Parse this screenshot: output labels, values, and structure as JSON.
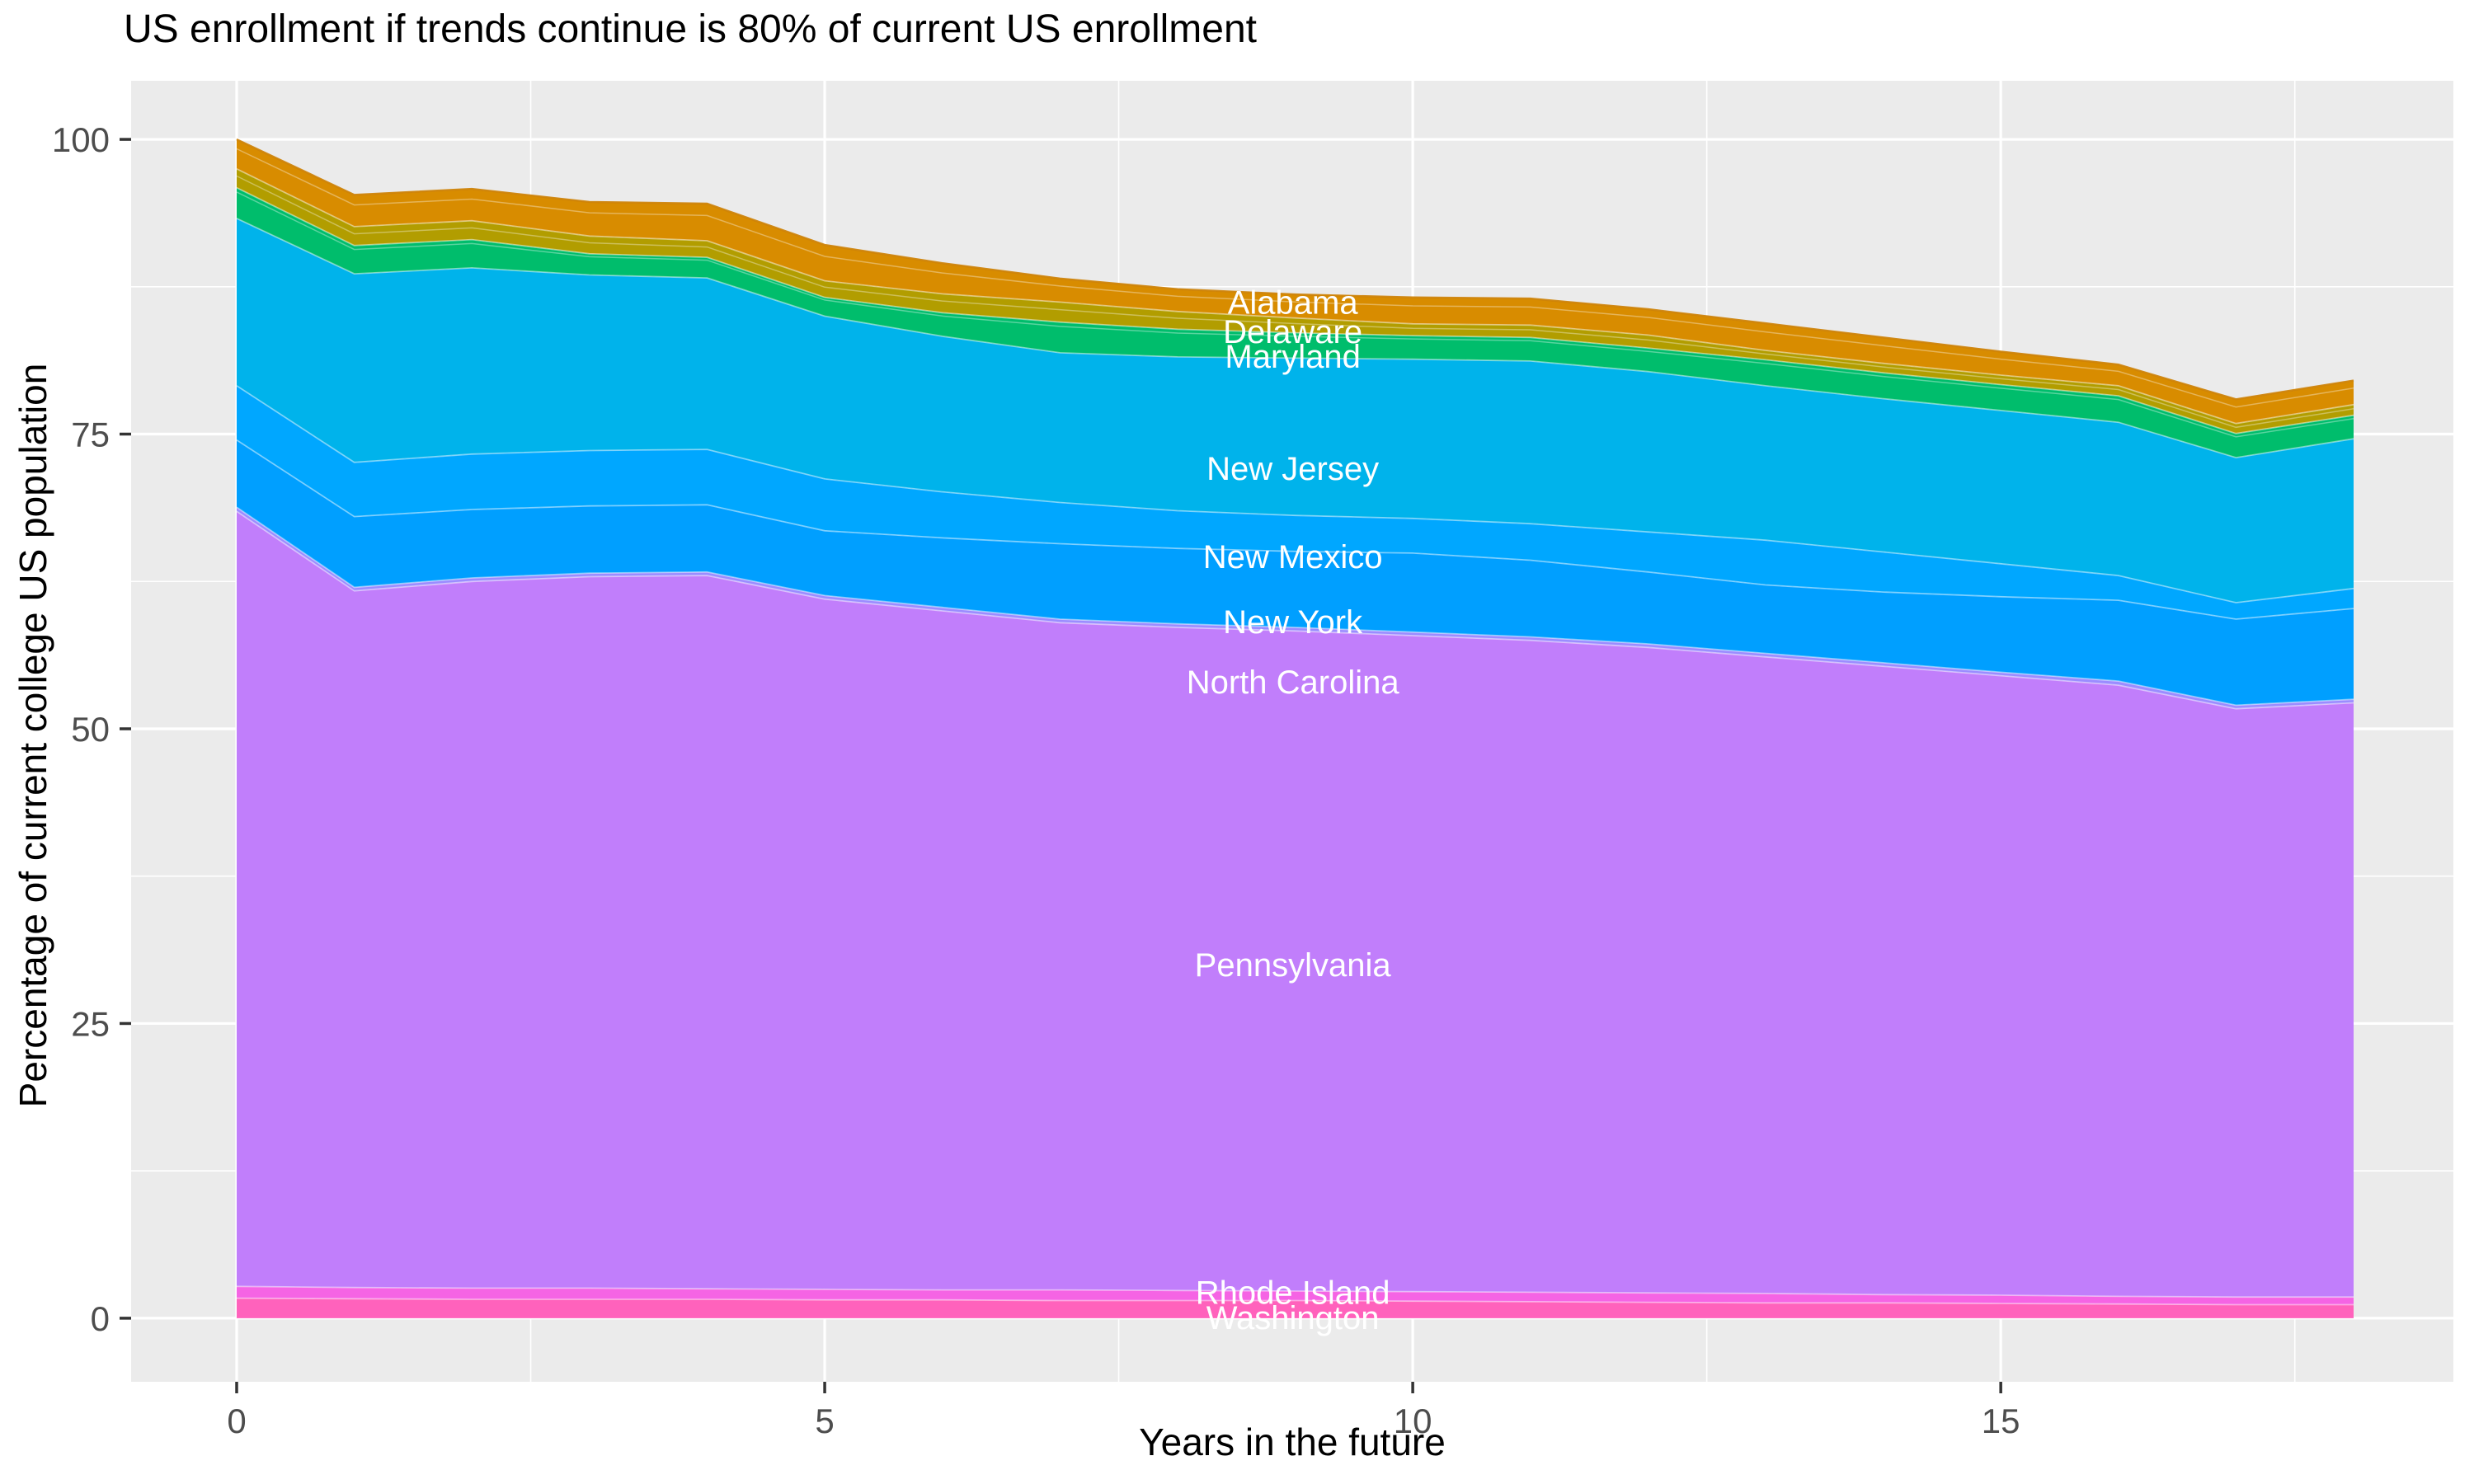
{
  "title": "US enrollment if trends continue is 80% of current US enrollment",
  "axes": {
    "x": {
      "title": "Years in the future",
      "ticks": [
        0,
        5,
        10,
        15
      ],
      "minor": [
        2.5,
        7.5,
        12.5,
        17.5
      ],
      "range": [
        0,
        18
      ]
    },
    "y": {
      "title": "Percentage of current college US population",
      "ticks": [
        0,
        25,
        50,
        75,
        100
      ],
      "minor": [
        12.5,
        37.5,
        62.5,
        87.5
      ],
      "range": [
        0,
        100
      ]
    }
  },
  "panel": {
    "background": "#EBEBEB",
    "gridline_color": "#FFFFFF",
    "tick_color": "#333333",
    "axis_text_color": "#4D4D4D"
  },
  "chart_data": {
    "type": "area",
    "stacked": true,
    "title": "US enrollment if trends continue is 80% of current US enrollment",
    "xlabel": "Years in the future",
    "ylabel": "Percentage of current college US population",
    "xlim": [
      0,
      18
    ],
    "ylim": [
      0,
      100
    ],
    "grid": true,
    "legend_position": "none",
    "x": [
      0,
      1,
      2,
      3,
      4,
      5,
      6,
      7,
      8,
      9,
      10,
      11,
      12,
      13,
      14,
      15,
      16,
      17,
      18
    ],
    "note": "series listed bottom-to-top; 'tops' are cumulative stacked percentages read from the plot",
    "series": [
      {
        "name": "Washington",
        "color": "#FF62BC",
        "tops": [
          1.7,
          1.65,
          1.6,
          1.6,
          1.6,
          1.55,
          1.55,
          1.5,
          1.5,
          1.5,
          1.45,
          1.4,
          1.35,
          1.3,
          1.3,
          1.25,
          1.2,
          1.15,
          1.15
        ]
      },
      {
        "name": "Rhode Island",
        "color": "#F564E4",
        "tops": [
          2.7,
          2.6,
          2.55,
          2.55,
          2.5,
          2.45,
          2.4,
          2.4,
          2.35,
          2.3,
          2.25,
          2.2,
          2.15,
          2.1,
          2.0,
          1.95,
          1.85,
          1.8,
          1.8
        ]
      },
      {
        "name": "Pennsylvania",
        "color": "#C17EFB",
        "tops": [
          68.45,
          61.7,
          62.5,
          62.9,
          63.0,
          61.0,
          60.0,
          59.0,
          58.6,
          58.3,
          57.9,
          57.5,
          56.9,
          56.1,
          55.3,
          54.5,
          53.7,
          51.7,
          52.2
        ]
      },
      {
        "name": "North Carolina",
        "color": "#9B8CFF",
        "tops": [
          68.8,
          62.0,
          62.8,
          63.2,
          63.3,
          61.3,
          60.3,
          59.3,
          58.9,
          58.6,
          58.2,
          57.8,
          57.2,
          56.4,
          55.6,
          54.8,
          54.05,
          52.0,
          52.5
        ]
      },
      {
        "name": "New York",
        "color": "#009FFF",
        "tops": [
          74.5,
          68.0,
          68.6,
          68.9,
          69.0,
          66.8,
          66.2,
          65.7,
          65.3,
          65.05,
          64.9,
          64.3,
          63.3,
          62.2,
          61.6,
          61.2,
          60.9,
          59.3,
          60.2
        ]
      },
      {
        "name": "New Mexico",
        "color": "#00A7FF",
        "tops": [
          79.1,
          72.6,
          73.3,
          73.6,
          73.7,
          71.2,
          70.1,
          69.2,
          68.5,
          68.1,
          67.85,
          67.4,
          66.7,
          66.0,
          65.0,
          64.0,
          63.0,
          60.7,
          61.9
        ]
      },
      {
        "name": "New Jersey",
        "color": "#00B3EB",
        "tops": [
          93.3,
          88.6,
          89.1,
          88.5,
          88.25,
          85.0,
          83.3,
          81.9,
          81.55,
          81.45,
          81.35,
          81.2,
          80.3,
          79.1,
          78.0,
          77.0,
          76.0,
          73.0,
          74.6
        ]
      },
      {
        "name": "Maryland",
        "color": "#00BD6C",
        "tops": [
          95.9,
          91.0,
          91.5,
          90.3,
          90.0,
          86.6,
          85.3,
          84.5,
          83.9,
          83.6,
          83.35,
          83.2,
          82.3,
          81.3,
          80.2,
          79.2,
          78.25,
          75.05,
          76.6
        ]
      },
      {
        "name": "Delaware",
        "color": "#B29D00",
        "tops": [
          97.5,
          92.6,
          93.1,
          91.8,
          91.4,
          88.0,
          86.9,
          86.2,
          85.4,
          84.85,
          84.35,
          84.25,
          83.4,
          82.1,
          81.0,
          80.0,
          79.1,
          75.9,
          77.5
        ]
      },
      {
        "name": "Alabama",
        "color": "#D88C00",
        "tops": [
          100,
          95.3,
          95.8,
          94.7,
          94.55,
          91.05,
          89.5,
          88.2,
          87.3,
          86.85,
          86.6,
          86.5,
          85.6,
          84.4,
          83.2,
          82.0,
          80.9,
          77.95,
          79.55
        ]
      }
    ],
    "sublines": [
      {
        "band": "Alabama",
        "frac": 0.32
      },
      {
        "band": "Delaware",
        "frac": 0.38
      },
      {
        "band": "Maryland",
        "frac": 0.14
      }
    ],
    "annotations": [
      {
        "text": "Alabama",
        "x": 8.98,
        "y": 86.2
      },
      {
        "text": "Delaware",
        "x": 8.98,
        "y": 83.7
      },
      {
        "text": "Maryland",
        "x": 8.98,
        "y": 81.6
      },
      {
        "text": "New Jersey",
        "x": 8.98,
        "y": 72.1
      },
      {
        "text": "New Mexico",
        "x": 8.98,
        "y": 64.6
      },
      {
        "text": "New York",
        "x": 8.98,
        "y": 59.1
      },
      {
        "text": "North Carolina",
        "x": 8.98,
        "y": 54.0
      },
      {
        "text": "Pennsylvania",
        "x": 8.98,
        "y": 30.0
      },
      {
        "text": "Rhode Island",
        "x": 8.98,
        "y": 2.2
      },
      {
        "text": "Washington",
        "x": 8.98,
        "y": 0.05
      }
    ],
    "annotation_color": "#FFFFFF"
  }
}
